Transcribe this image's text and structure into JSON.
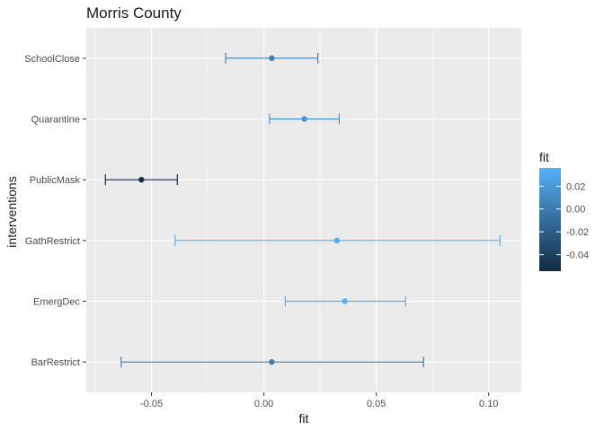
{
  "chart_data": {
    "type": "scatter",
    "title": "Morris County",
    "xlabel": "fit",
    "ylabel": "interventions",
    "xlim": [
      -0.079,
      0.1145
    ],
    "x_ticks": [
      -0.05,
      0.0,
      0.05,
      0.1
    ],
    "x_tick_labels": [
      "-0.05",
      "0.00",
      "0.05",
      "0.10"
    ],
    "categories": [
      "SchoolClose",
      "Quarantine",
      "PublicMask",
      "GathRestrict",
      "EmergDec",
      "BarRestrict"
    ],
    "points": [
      {
        "intervention": "SchoolClose",
        "fit": 0.0035,
        "lower": -0.017,
        "upper": 0.024
      },
      {
        "intervention": "Quarantine",
        "fit": 0.018,
        "lower": 0.0025,
        "upper": 0.0335
      },
      {
        "intervention": "PublicMask",
        "fit": -0.0545,
        "lower": -0.0705,
        "upper": -0.0385
      },
      {
        "intervention": "GathRestrict",
        "fit": 0.0325,
        "lower": -0.0395,
        "upper": 0.105
      },
      {
        "intervention": "EmergDec",
        "fit": 0.036,
        "lower": 0.0095,
        "upper": 0.063
      },
      {
        "intervention": "BarRestrict",
        "fit": 0.0035,
        "lower": -0.0635,
        "upper": 0.071
      }
    ],
    "grid": true,
    "legend": {
      "title": "fit",
      "position": "right",
      "ticks": [
        0.02,
        0.0,
        -0.02,
        -0.04
      ],
      "tick_labels": [
        "0.02",
        "0.00",
        "-0.02",
        "-0.04"
      ],
      "color_range": [
        -0.0545,
        0.036
      ],
      "color_low": "#132b43",
      "color_high": "#56b1f7"
    },
    "colors": {
      "panel": "#ebebeb",
      "grid_major": "#ffffff",
      "tick": "#333333"
    }
  }
}
